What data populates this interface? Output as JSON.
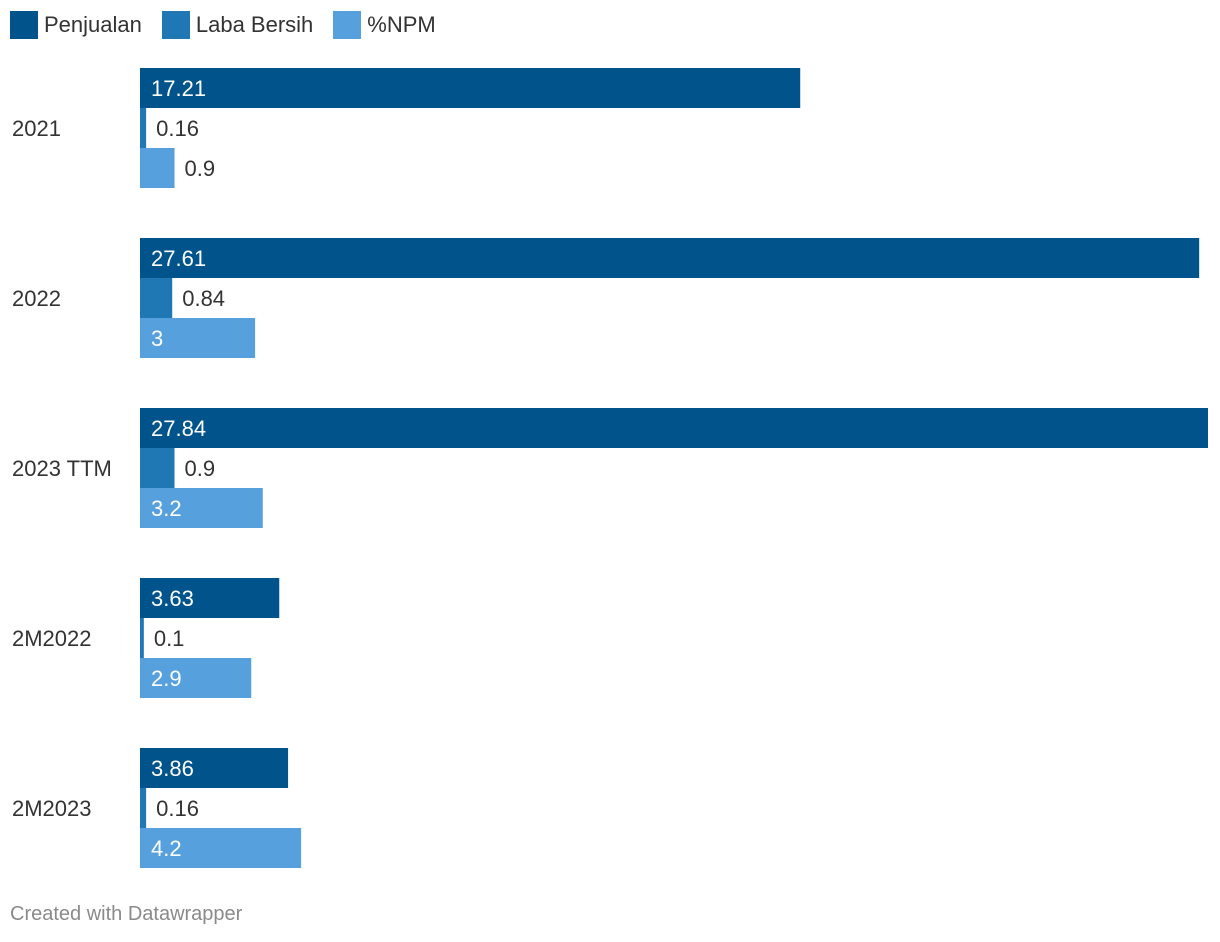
{
  "legend": [
    {
      "name": "Penjualan",
      "color": "#00538b"
    },
    {
      "name": "Laba Bersih",
      "color": "#1f78b4"
    },
    {
      "name": "%NPM",
      "color": "#56a0dd"
    }
  ],
  "footer": "Created with Datawrapper",
  "chart_data": {
    "type": "bar",
    "orientation": "horizontal",
    "categories": [
      "2021",
      "2022",
      "2023 TTM",
      "2M2022",
      "2M2023"
    ],
    "series": [
      {
        "name": "Penjualan",
        "color": "#00538b",
        "values": [
          17.21,
          27.61,
          27.84,
          3.63,
          3.86
        ],
        "labels": [
          "17.21",
          "27.61",
          "27.84",
          "3.63",
          "3.86"
        ]
      },
      {
        "name": "Laba Bersih",
        "color": "#1f78b4",
        "values": [
          0.16,
          0.84,
          0.9,
          0.1,
          0.16
        ],
        "labels": [
          "0.16",
          "0.84",
          "0.9",
          "0.1",
          "0.16"
        ]
      },
      {
        "name": "%NPM",
        "color": "#56a0dd",
        "values": [
          0.9,
          3,
          3.2,
          2.9,
          4.2
        ],
        "labels": [
          "0.9",
          "3",
          "3.2",
          "2.9",
          "4.2"
        ]
      }
    ],
    "xlim": [
      0,
      27.84
    ],
    "grid": false,
    "legend_position": "top-left",
    "title": "",
    "xlabel": "",
    "ylabel": ""
  }
}
